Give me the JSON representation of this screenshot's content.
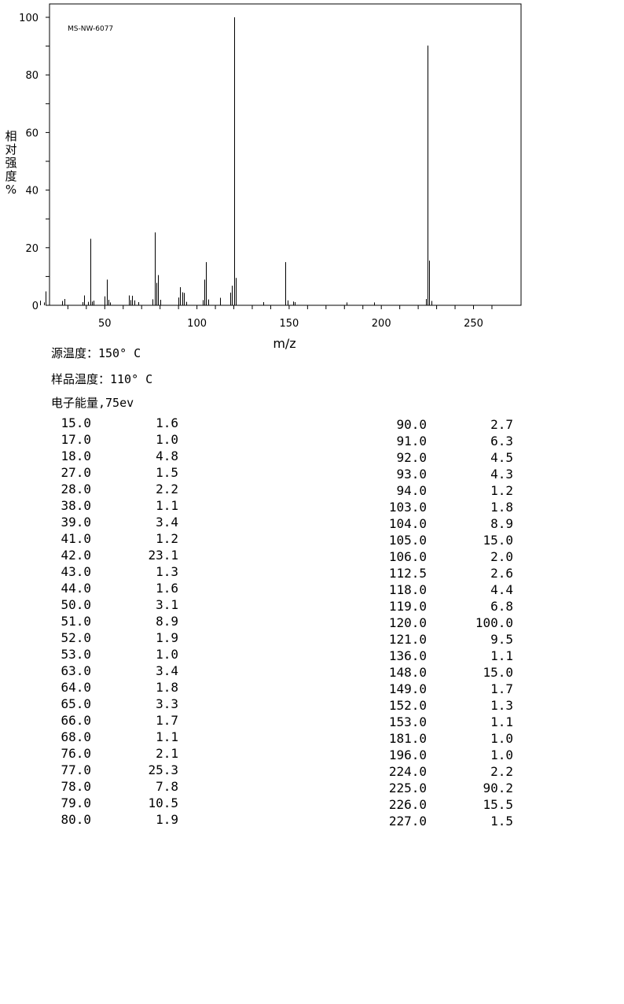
{
  "chart_data": {
    "type": "bar",
    "title": "MS-NW-6077",
    "xlabel": "m/z",
    "ylabel": "相对强度 %",
    "xlim": [
      10,
      265
    ],
    "ylim": [
      0,
      100
    ],
    "xticks": [
      "50",
      "100",
      "150",
      "200",
      "250"
    ],
    "yticks": [
      "0",
      "20",
      "40",
      "60",
      "80",
      "100"
    ],
    "x": [
      15.0,
      17.0,
      18.0,
      27.0,
      28.0,
      38.0,
      39.0,
      41.0,
      42.0,
      43.0,
      44.0,
      50.0,
      51.0,
      52.0,
      53.0,
      63.0,
      64.0,
      65.0,
      66.0,
      68.0,
      76.0,
      77.0,
      78.0,
      79.0,
      80.0,
      90.0,
      91.0,
      92.0,
      93.0,
      94.0,
      103.0,
      104.0,
      105.0,
      106.0,
      112.5,
      118.0,
      119.0,
      120.0,
      121.0,
      136.0,
      148.0,
      149.0,
      152.0,
      153.0,
      181.0,
      196.0,
      224.0,
      225.0,
      226.0,
      227.0
    ],
    "values": [
      1.6,
      1.0,
      4.8,
      1.5,
      2.2,
      1.1,
      3.4,
      1.2,
      23.1,
      1.3,
      1.6,
      3.1,
      8.9,
      1.9,
      1.0,
      3.4,
      1.8,
      3.3,
      1.7,
      1.1,
      2.1,
      25.3,
      7.8,
      10.5,
      1.9,
      2.7,
      6.3,
      4.5,
      4.3,
      1.2,
      1.8,
      8.9,
      15.0,
      2.0,
      2.6,
      4.4,
      6.8,
      100.0,
      9.5,
      1.1,
      15.0,
      1.7,
      1.3,
      1.1,
      1.0,
      1.0,
      2.2,
      90.2,
      15.5,
      1.5
    ]
  },
  "info": {
    "source_temp": "源温度：150° C",
    "sample_temp": "样品温度：110° C",
    "electron_energy": "电子能量,75ev"
  },
  "table": {
    "left": [
      [
        "15.0",
        "1.6"
      ],
      [
        "17.0",
        "1.0"
      ],
      [
        "18.0",
        "4.8"
      ],
      [
        "27.0",
        "1.5"
      ],
      [
        "28.0",
        "2.2"
      ],
      [
        "38.0",
        "1.1"
      ],
      [
        "39.0",
        "3.4"
      ],
      [
        "41.0",
        "1.2"
      ],
      [
        "42.0",
        "23.1"
      ],
      [
        "43.0",
        "1.3"
      ],
      [
        "44.0",
        "1.6"
      ],
      [
        "50.0",
        "3.1"
      ],
      [
        "51.0",
        "8.9"
      ],
      [
        "52.0",
        "1.9"
      ],
      [
        "53.0",
        "1.0"
      ],
      [
        "63.0",
        "3.4"
      ],
      [
        "64.0",
        "1.8"
      ],
      [
        "65.0",
        "3.3"
      ],
      [
        "66.0",
        "1.7"
      ],
      [
        "68.0",
        "1.1"
      ],
      [
        "76.0",
        "2.1"
      ],
      [
        "77.0",
        "25.3"
      ],
      [
        "78.0",
        "7.8"
      ],
      [
        "79.0",
        "10.5"
      ],
      [
        "80.0",
        "1.9"
      ]
    ],
    "right": [
      [
        "90.0",
        "2.7"
      ],
      [
        "91.0",
        "6.3"
      ],
      [
        "92.0",
        "4.5"
      ],
      [
        "93.0",
        "4.3"
      ],
      [
        "94.0",
        "1.2"
      ],
      [
        "103.0",
        "1.8"
      ],
      [
        "104.0",
        "8.9"
      ],
      [
        "105.0",
        "15.0"
      ],
      [
        "106.0",
        "2.0"
      ],
      [
        "112.5",
        "2.6"
      ],
      [
        "118.0",
        "4.4"
      ],
      [
        "119.0",
        "6.8"
      ],
      [
        "120.0",
        "100.0"
      ],
      [
        "121.0",
        "9.5"
      ],
      [
        "136.0",
        "1.1"
      ],
      [
        "148.0",
        "15.0"
      ],
      [
        "149.0",
        "1.7"
      ],
      [
        "152.0",
        "1.3"
      ],
      [
        "153.0",
        "1.1"
      ],
      [
        "181.0",
        "1.0"
      ],
      [
        "196.0",
        "1.0"
      ],
      [
        "224.0",
        "2.2"
      ],
      [
        "225.0",
        "90.2"
      ],
      [
        "226.0",
        "15.5"
      ],
      [
        "227.0",
        "1.5"
      ]
    ]
  }
}
